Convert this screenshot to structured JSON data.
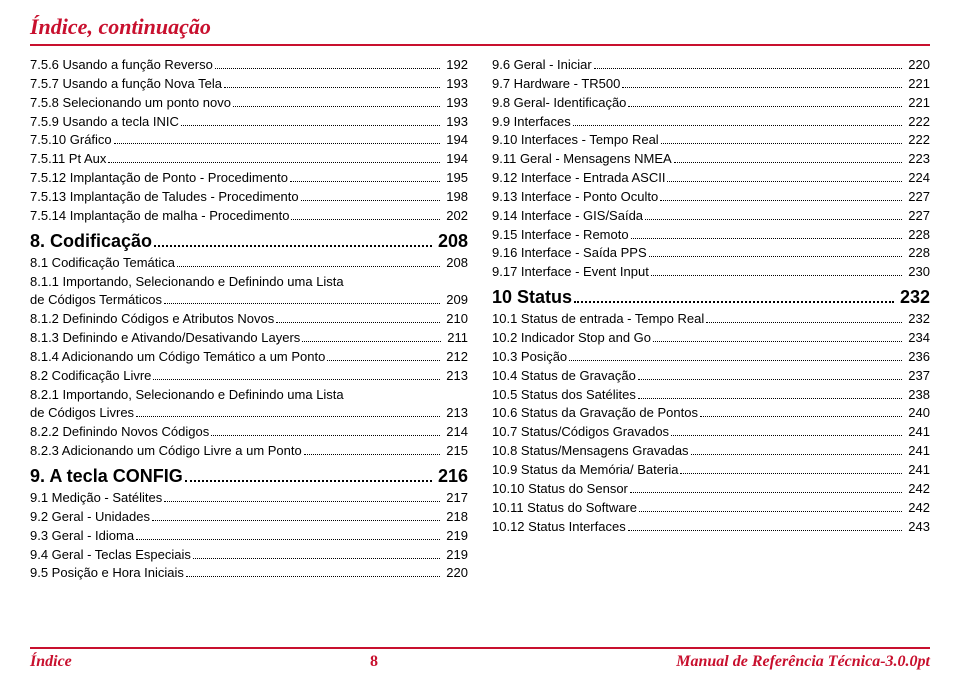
{
  "header": "Índice, continuação",
  "footer": {
    "left": "Índice",
    "page": "8",
    "right": "Manual de Referência Técnica-3.0.0pt"
  },
  "left": [
    {
      "label": "7.5.6 Usando a função Reverso",
      "page": "192",
      "level": 3
    },
    {
      "label": "7.5.7 Usando a função Nova Tela",
      "page": "193",
      "level": 3
    },
    {
      "label": "7.5.8 Selecionando um ponto novo",
      "page": "193",
      "level": 3
    },
    {
      "label": "7.5.9 Usando a tecla INIC",
      "page": "193",
      "level": 3
    },
    {
      "label": "7.5.10 Gráfico",
      "page": "194",
      "level": 3
    },
    {
      "label": "7.5.11 Pt Aux",
      "page": "194",
      "level": 3
    },
    {
      "label": "7.5.12 Implantação de Ponto - Procedimento",
      "page": "195",
      "level": 3
    },
    {
      "label": "7.5.13 Implantação de Taludes - Procedimento",
      "page": "198",
      "level": 3
    },
    {
      "label": "7.5.14 Implantação de malha - Procedimento",
      "page": "202",
      "level": 3
    },
    {
      "label": "8. Codificação",
      "page": "208",
      "level": 1
    },
    {
      "label": "8.1 Codificação Temática",
      "page": "208",
      "level": 2
    },
    {
      "label": "8.1.1 Importando, Selecionando e Definindo uma Lista",
      "cont": "de Códigos Termáticos",
      "page": "209",
      "level": 3
    },
    {
      "label": "8.1.2 Definindo Códigos e Atributos Novos",
      "page": "210",
      "level": 3
    },
    {
      "label": "8.1.3 Definindo e Ativando/Desativando Layers",
      "page": "211",
      "level": 3
    },
    {
      "label": "8.1.4 Adicionando um Código Temático a um Ponto",
      "page": "212",
      "level": 3
    },
    {
      "label": "8.2 Codificação Livre",
      "page": "213",
      "level": 2
    },
    {
      "label": "8.2.1 Importando, Selecionando e Definindo uma Lista",
      "cont": "de Códigos Livres",
      "page": "213",
      "level": 3
    },
    {
      "label": "8.2.2 Definindo Novos Códigos",
      "page": "214",
      "level": 3
    },
    {
      "label": "8.2.3 Adicionando um Código Livre a um Ponto",
      "page": "215",
      "level": 3
    },
    {
      "label": "9. A tecla CONFIG",
      "page": "216",
      "level": 1
    },
    {
      "label": "9.1 Medição - Satélites",
      "page": "217",
      "level": 2
    },
    {
      "label": "9.2 Geral - Unidades",
      "page": "218",
      "level": 2
    },
    {
      "label": "9.3 Geral - Idioma",
      "page": "219",
      "level": 2
    },
    {
      "label": "9.4 Geral - Teclas Especiais",
      "page": "219",
      "level": 2
    },
    {
      "label": "9.5 Posição e Hora Iniciais",
      "page": "220",
      "level": 2
    }
  ],
  "right": [
    {
      "label": "9.6 Geral - Iniciar",
      "page": "220",
      "level": 2
    },
    {
      "label": "9.7 Hardware - TR500",
      "page": "221",
      "level": 2
    },
    {
      "label": "9.8 Geral- Identificação",
      "page": "221",
      "level": 2
    },
    {
      "label": "9.9 Interfaces",
      "page": "222",
      "level": 2
    },
    {
      "label": "9.10 Interfaces - Tempo Real",
      "page": "222",
      "level": 2
    },
    {
      "label": "9.11 Geral - Mensagens NMEA",
      "page": "223",
      "level": 2
    },
    {
      "label": "9.12 Interface - Entrada ASCII",
      "page": "224",
      "level": 2
    },
    {
      "label": "9.13 Interface - Ponto Oculto",
      "page": "227",
      "level": 2
    },
    {
      "label": "9.14 Interface - GIS/Saída",
      "page": "227",
      "level": 2
    },
    {
      "label": "9.15 Interface - Remoto",
      "page": "228",
      "level": 2
    },
    {
      "label": "9.16 Interface - Saída PPS",
      "page": "228",
      "level": 2
    },
    {
      "label": "9.17 Interface - Event Input",
      "page": "230",
      "level": 2
    },
    {
      "label": "10 Status",
      "page": "232",
      "level": 1
    },
    {
      "label": "10.1 Status de entrada - Tempo Real",
      "page": "232",
      "level": 2
    },
    {
      "label": "10.2 Indicador Stop and Go",
      "page": "234",
      "level": 2
    },
    {
      "label": "10.3 Posição",
      "page": "236",
      "level": 2
    },
    {
      "label": "10.4 Status de Gravação",
      "page": "237",
      "level": 2
    },
    {
      "label": "10.5 Status dos Satélites",
      "page": "238",
      "level": 2
    },
    {
      "label": "10.6 Status da Gravação de Pontos",
      "page": "240",
      "level": 2
    },
    {
      "label": "10.7 Status/Códigos Gravados",
      "page": "241",
      "level": 2
    },
    {
      "label": "10.8 Status/Mensagens Gravadas",
      "page": "241",
      "level": 2
    },
    {
      "label": "10.9 Status da Memória/ Bateria",
      "page": "241",
      "level": 2
    },
    {
      "label": "10.10 Status do Sensor",
      "page": "242",
      "level": 2
    },
    {
      "label": "10.11 Status do Software",
      "page": "242",
      "level": 2
    },
    {
      "label": "10.12 Status Interfaces",
      "page": "243",
      "level": 2
    }
  ]
}
